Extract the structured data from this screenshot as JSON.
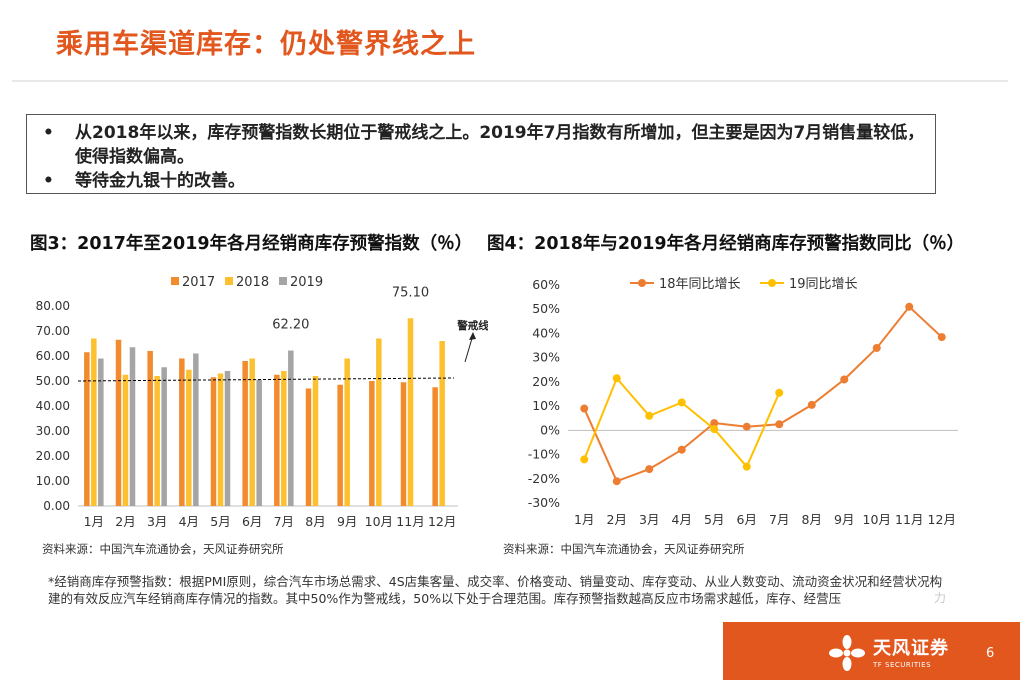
{
  "slide": {
    "title": "乘用车渠道库存：仍处警界线之上",
    "bullets": [
      "从2018年以来，库存预警指数长期位于警戒线之上。2019年7月指数有所增加，但主要是因为7月销售量较低，使得指数偏高。",
      "等待金九银十的改善。"
    ],
    "bullet_glyph": "•",
    "fig3_title": "图3：2017年至2019年各月经销商库存预警指数（％）",
    "fig4_title": "图4：2018年与2019年各月经销商库存预警指数同比（％）",
    "source_left": "资料来源：中国汽车流通协会，天风证券研究所",
    "source_right": "资料来源：中国汽车流通协会，天风证券研究所",
    "footnote": "*经销商库存预警指数：根据PMI原则，综合汽车市场总需求、4S店集客量、成交率、价格变动、销量变动、库存变动、从业人数变动、流动资金状况和经营状况构建的有效反应汽车经销商库存情况的指数。其中50%作为警戒线，50%以下处于合理范围。库存预警指数越高反应市场需求越低，库存、经营压",
    "footnote_edge": "力",
    "brand_name": "天风证券",
    "brand_en": "TF SECURITIES",
    "page_number": "6",
    "colors": {
      "accent": "#e2571e",
      "s2017": "#f28a2e",
      "s2018": "#fdc02f",
      "s2019": "#a5a5a5",
      "warning_line": "#000000"
    }
  },
  "chart_data": [
    {
      "type": "bar",
      "categories": [
        "1月",
        "2月",
        "3月",
        "4月",
        "5月",
        "6月",
        "7月",
        "8月",
        "9月",
        "10月",
        "11月",
        "12月"
      ],
      "series": [
        {
          "name": "2017",
          "color": "#f28a2e",
          "values": [
            61.5,
            66.5,
            62.0,
            59.0,
            51.5,
            58.0,
            52.5,
            47.0,
            48.5,
            50.0,
            49.5,
            47.5
          ]
        },
        {
          "name": "2018",
          "color": "#fdc02f",
          "values": [
            67.0,
            52.5,
            52.0,
            54.5,
            53.0,
            59.0,
            54.0,
            52.0,
            59.0,
            67.0,
            75.1,
            66.0
          ]
        },
        {
          "name": "2019",
          "color": "#a5a5a5",
          "values": [
            59.0,
            63.5,
            55.5,
            61.0,
            54.0,
            50.5,
            62.2,
            null,
            null,
            null,
            null,
            null
          ]
        }
      ],
      "ylim": [
        0,
        80
      ],
      "yticks": [
        "0.00",
        "10.00",
        "20.00",
        "30.00",
        "40.00",
        "50.00",
        "60.00",
        "70.00",
        "80.00"
      ],
      "data_labels": [
        {
          "text": "62.20",
          "series": "2019",
          "category": "7月"
        },
        {
          "text": "75.10",
          "series": "2018",
          "category": "11月"
        }
      ],
      "warning_line": {
        "value": 50,
        "label": "警戒线"
      },
      "legend_position": "top"
    },
    {
      "type": "line",
      "categories": [
        "1月",
        "2月",
        "3月",
        "4月",
        "5月",
        "6月",
        "7月",
        "8月",
        "9月",
        "10月",
        "11月",
        "12月"
      ],
      "series": [
        {
          "name": "18年同比增长",
          "color": "#ed7d31",
          "values": [
            9,
            -21,
            -16,
            -8,
            3,
            1.5,
            2.5,
            10.5,
            21,
            34,
            51,
            38.5
          ]
        },
        {
          "name": "19同比增长",
          "color": "#ffc000",
          "values": [
            -12,
            21.5,
            6,
            11.5,
            0.5,
            -15,
            15.5,
            null,
            null,
            null,
            null,
            null
          ]
        }
      ],
      "ylim": [
        -30,
        60
      ],
      "yticks": [
        "-30%",
        "-20%",
        "-10%",
        "0%",
        "10%",
        "20%",
        "30%",
        "40%",
        "50%",
        "60%"
      ],
      "legend_position": "top"
    }
  ]
}
